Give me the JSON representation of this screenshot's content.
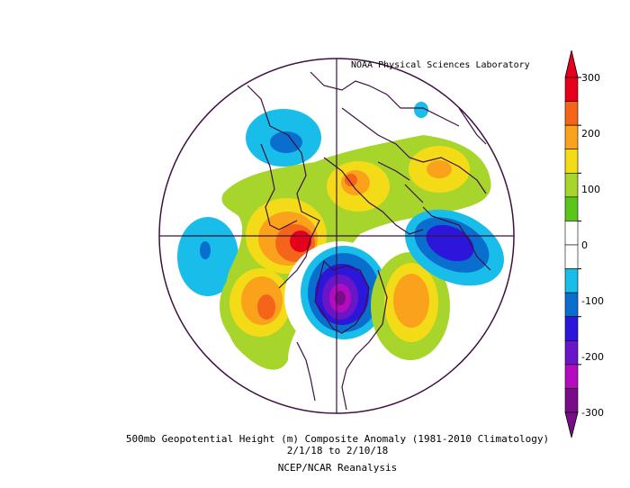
{
  "credit": "NOAA Physical Sciences Laboratory",
  "title": "500mb Geopotential Height (m) Composite Anomaly (1981-2010 Climatology)",
  "dates": "2/1/18  to 2/10/18",
  "source": "NCEP/NCAR Reanalysis",
  "colorbar": {
    "ticks": [
      "300",
      "200",
      "100",
      "0",
      "-100",
      "-200",
      "-300"
    ],
    "colors": [
      "#e5001b",
      "#f5641b",
      "#fba21c",
      "#f3dc17",
      "#a7d52c",
      "#5bc61a",
      "#ffffff",
      "#ffffff",
      "#18bde9",
      "#0a6ecf",
      "#2b16d9",
      "#6a16c8",
      "#b40bc0",
      "#7a0c8a"
    ]
  },
  "anomalies": [
    {
      "name": "ridge-west-north-america",
      "center": "Western North America",
      "sign": "positive",
      "level": 300
    },
    {
      "name": "trough-north-pole",
      "center": "Arctic near pole",
      "sign": "negative",
      "level": -300
    },
    {
      "name": "trough-east-asia",
      "center": "East Asia / Pacific",
      "sign": "negative",
      "level": -200
    },
    {
      "name": "ridge-europe",
      "center": "Europe / Scandinavia",
      "sign": "positive",
      "level": 200
    },
    {
      "name": "ridge-atlantic",
      "center": "North Atlantic",
      "sign": "positive",
      "level": 200
    },
    {
      "name": "ridge-siberia",
      "center": "Siberia",
      "sign": "positive",
      "level": 200
    },
    {
      "name": "trough-north-africa",
      "center": "North Africa",
      "sign": "negative",
      "level": -100
    },
    {
      "name": "trough-pacific",
      "center": "Central Pacific",
      "sign": "negative",
      "level": -100
    }
  ]
}
